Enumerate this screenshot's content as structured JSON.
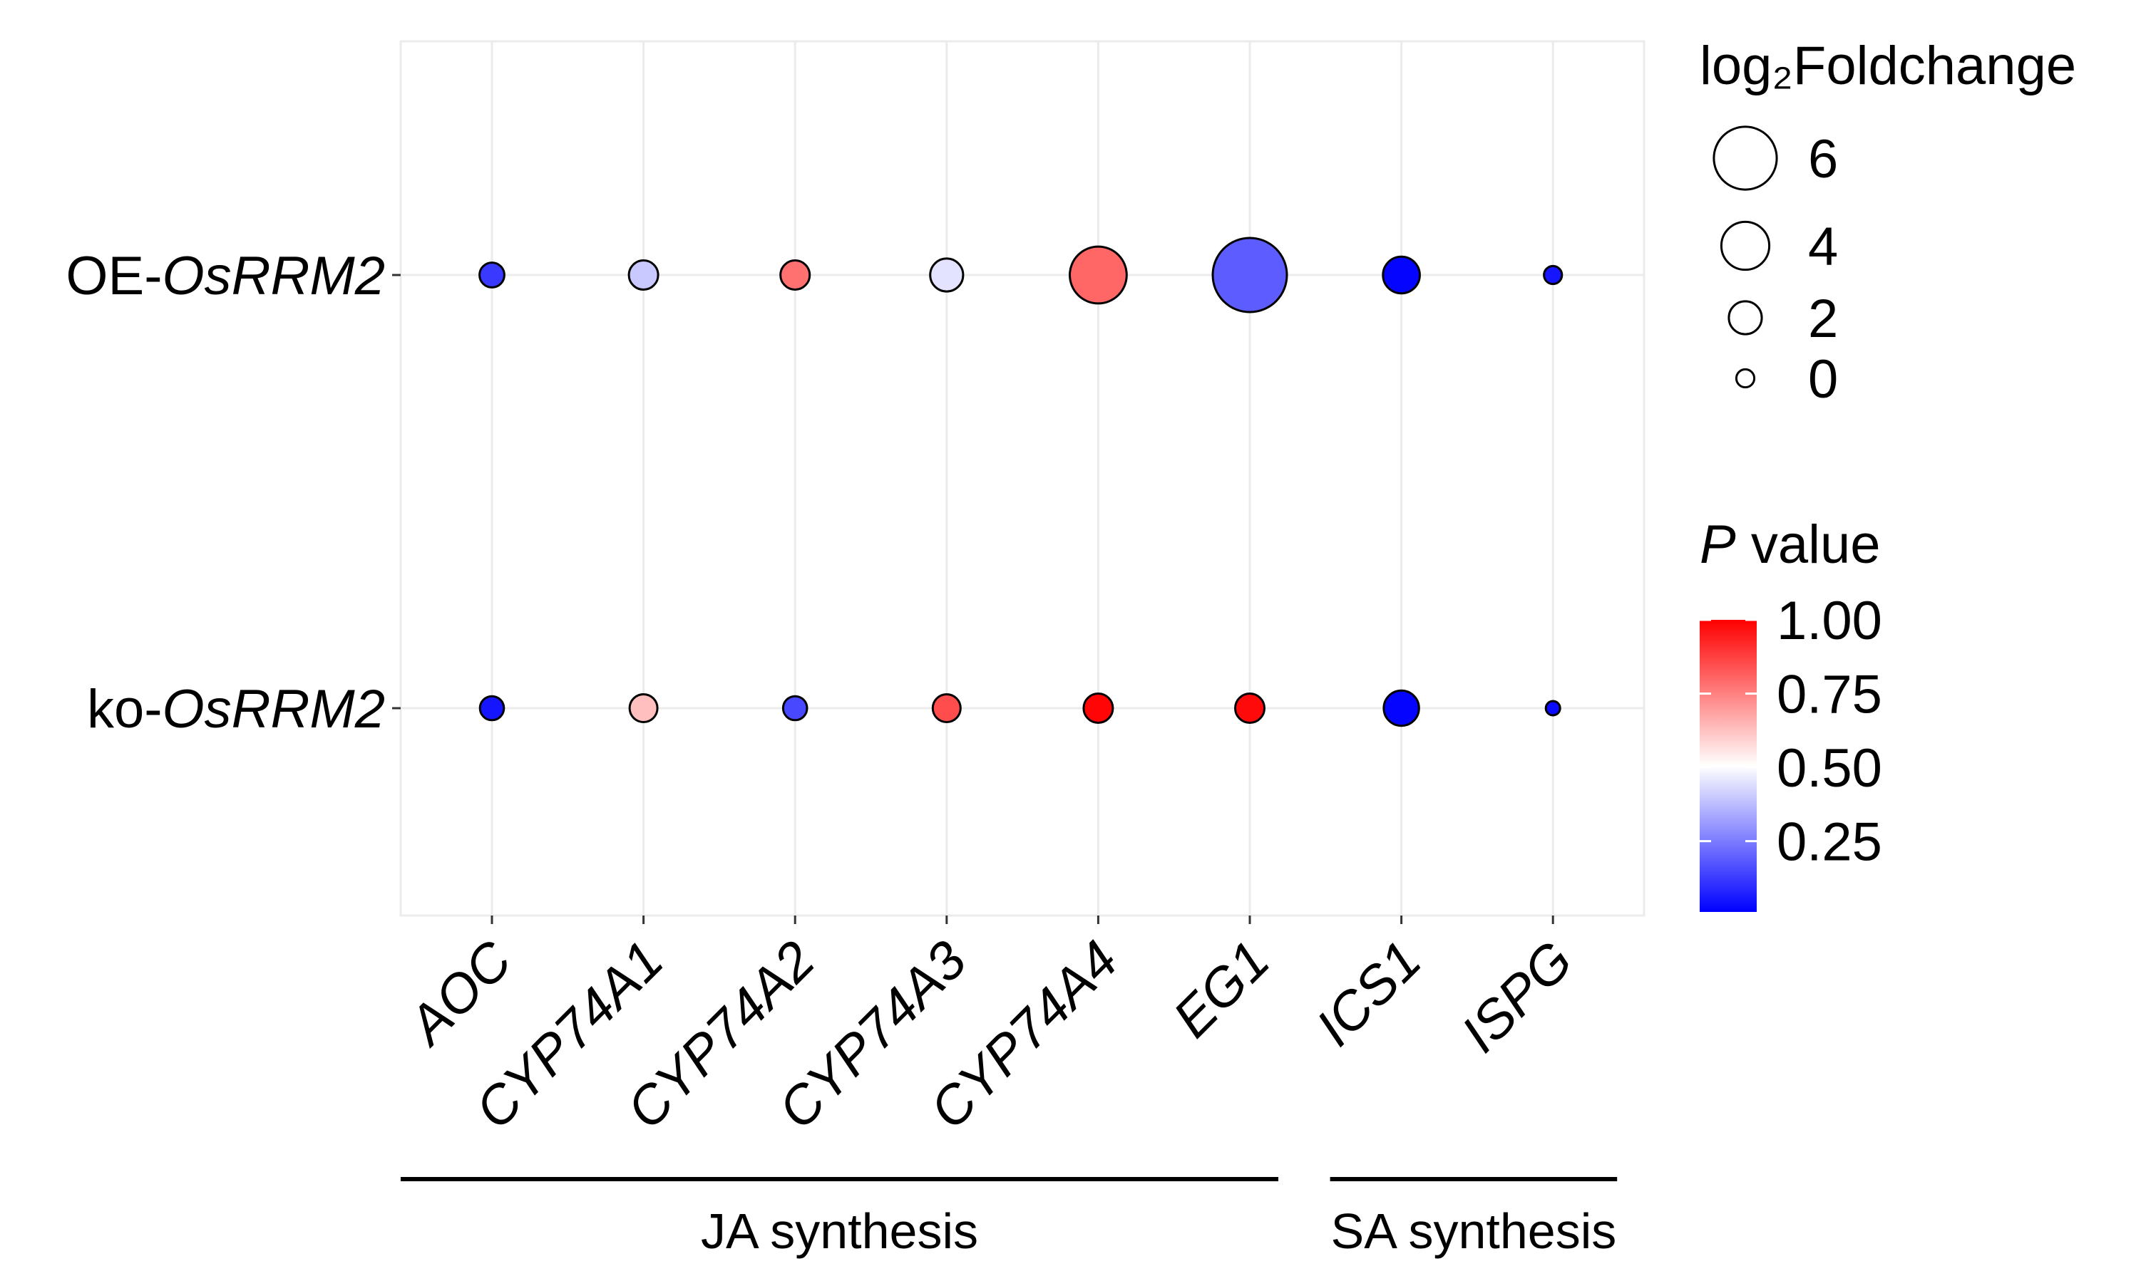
{
  "chart_data": {
    "type": "scatter",
    "subtype": "bubble",
    "rows": [
      {
        "prefix": "OE-",
        "italic": "OsRRM2"
      },
      {
        "prefix": "ko-",
        "italic": "OsRRM2"
      }
    ],
    "genes": [
      "AOC",
      "CYP74A1",
      "CYP74A2",
      "CYP74A3",
      "CYP74A4",
      "EG1",
      "ICS1",
      "ISPG"
    ],
    "points": [
      {
        "row": 0,
        "gene": "AOC",
        "log2fc": 0.9,
        "p": 0.12
      },
      {
        "row": 0,
        "gene": "CYP74A1",
        "log2fc": 1.5,
        "p": 0.4
      },
      {
        "row": 0,
        "gene": "CYP74A2",
        "log2fc": 1.5,
        "p": 0.78
      },
      {
        "row": 0,
        "gene": "CYP74A3",
        "log2fc": 2.0,
        "p": 0.45
      },
      {
        "row": 0,
        "gene": "CYP74A4",
        "log2fc": 5.2,
        "p": 0.8
      },
      {
        "row": 0,
        "gene": "EG1",
        "log2fc": 7.5,
        "p": 0.19
      },
      {
        "row": 0,
        "gene": "ICS1",
        "log2fc": 2.5,
        "p": 0.02
      },
      {
        "row": 0,
        "gene": "ISPG",
        "log2fc": 0.0,
        "p": 0.05
      },
      {
        "row": 1,
        "gene": "AOC",
        "log2fc": 0.8,
        "p": 0.05
      },
      {
        "row": 1,
        "gene": "CYP74A1",
        "log2fc": 1.3,
        "p": 0.63
      },
      {
        "row": 1,
        "gene": "CYP74A2",
        "log2fc": 0.8,
        "p": 0.15
      },
      {
        "row": 1,
        "gene": "CYP74A3",
        "log2fc": 1.3,
        "p": 0.85
      },
      {
        "row": 1,
        "gene": "CYP74A4",
        "log2fc": 1.5,
        "p": 0.99
      },
      {
        "row": 1,
        "gene": "EG1",
        "log2fc": 1.5,
        "p": 0.98
      },
      {
        "row": 1,
        "gene": "ICS1",
        "log2fc": 2.3,
        "p": 0.02
      },
      {
        "row": 1,
        "gene": "ISPG",
        "log2fc": -0.5,
        "p": 0.03
      }
    ],
    "size_legend": {
      "title": "log₂Foldchange",
      "breaks": [
        6,
        4,
        2,
        0
      ]
    },
    "color_legend": {
      "title_italic": "P",
      "title_rest": " value",
      "breaks": [
        "1.00",
        "0.75",
        "0.50",
        "0.25"
      ],
      "break_values": [
        1.0,
        0.75,
        0.5,
        0.25
      ],
      "range": [
        0.01,
        1.0
      ],
      "colors": {
        "low": "#0000ff",
        "mid": "#ffffff",
        "high": "#ff0000"
      }
    },
    "groups": [
      {
        "label": "JA synthesis",
        "genes": [
          "AOC",
          "CYP74A1",
          "CYP74A2",
          "CYP74A3",
          "CYP74A4",
          "EG1"
        ]
      },
      {
        "label": "SA synthesis",
        "genes": [
          "ICS1",
          "ISPG"
        ]
      }
    ],
    "grid": true
  }
}
